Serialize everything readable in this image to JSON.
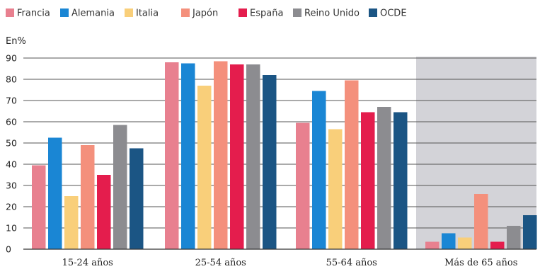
{
  "chart_data": {
    "type": "bar",
    "ylabel": "En%",
    "ylim": [
      0,
      90
    ],
    "yticks": [
      0,
      10,
      20,
      30,
      40,
      50,
      60,
      70,
      80,
      90
    ],
    "grid": true,
    "legend_position": "top-left",
    "categories": [
      "15-24 años",
      "25-54 años",
      "55-64 años",
      "Más de 65 años"
    ],
    "highlighted_category": "Más de 65 años",
    "series": [
      {
        "name": "Francia",
        "color": "#e8808f",
        "values": [
          39.5,
          88,
          59.5,
          3.5
        ]
      },
      {
        "name": "Alemania",
        "color": "#1a86d4",
        "values": [
          52.5,
          87.5,
          74.5,
          7.5
        ]
      },
      {
        "name": "Italia",
        "color": "#f9cf7a",
        "values": [
          25,
          77,
          56.5,
          5.5
        ]
      },
      {
        "name": "Japón",
        "color": "#f4907c",
        "values": [
          49,
          88.5,
          79.5,
          26
        ]
      },
      {
        "name": "España",
        "color": "#e41d4d",
        "values": [
          35,
          87,
          64.5,
          3.5
        ]
      },
      {
        "name": "Reino Unido",
        "color": "#8c8c90",
        "values": [
          58.5,
          87,
          67,
          11
        ]
      },
      {
        "name": "OCDE",
        "color": "#1b5584",
        "values": [
          47.5,
          82,
          64.5,
          16
        ]
      }
    ]
  }
}
